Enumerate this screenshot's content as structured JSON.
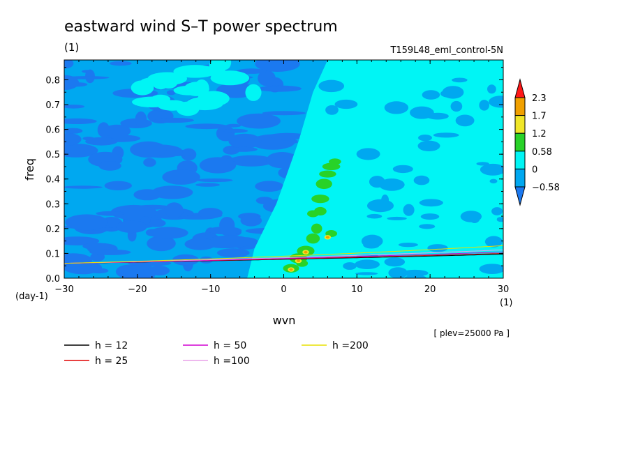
{
  "title": "eastward wind S–T power spectrum",
  "units_label": "(1)",
  "run_label": "T159L48_eml_control-5N",
  "level_label": "[ plev=25000 Pa ]",
  "colors": {
    "bg": "#ffffff",
    "level_below": "#1b79f0",
    "level_neg": "#00a8f0",
    "level_mid": "#00f5f5",
    "level_high1": "#28d228",
    "level_high2": "#f0e628",
    "level_high3": "#f0a000",
    "level_top": "#ff1818"
  },
  "chart_data": {
    "type": "heatmap",
    "xlabel": "wvn",
    "ylabel": "freq",
    "x_unit_label": "(1)",
    "y_unit_label": "(day-1)",
    "xlim": [
      -30,
      30
    ],
    "ylim": [
      0,
      0.88
    ],
    "xticks": [
      -30,
      -20,
      -10,
      0,
      10,
      20,
      30
    ],
    "yticks": [
      0.0,
      0.1,
      0.2,
      0.3,
      0.4,
      0.5,
      0.6,
      0.7,
      0.8
    ],
    "colorbar": {
      "levels": [
        "-0.58",
        "0",
        "0.58",
        "1.2",
        "1.7",
        "2.3"
      ],
      "colors": [
        "#1b79f0",
        "#00a8f0",
        "#00f5f5",
        "#28d228",
        "#f0e628",
        "#f0a000",
        "#ff1818"
      ]
    },
    "series": [
      {
        "name": "h = 12",
        "color": "#000000",
        "h": 12
      },
      {
        "name": "h = 25",
        "color": "#e00000",
        "h": 25
      },
      {
        "name": "h = 50",
        "color": "#d000d0",
        "h": 50
      },
      {
        "name": "h =100",
        "color": "#e8a0e8",
        "h": 100
      },
      {
        "name": "h =200",
        "color": "#e8e000",
        "h": 200
      }
    ]
  }
}
